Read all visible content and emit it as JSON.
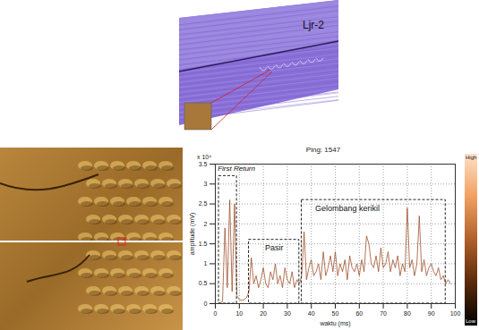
{
  "figure": {
    "sonar_label": "Ljr-2"
  },
  "chart_data": {
    "type": "line",
    "title": "Ping: 1547",
    "x_label": "waktu (ms)",
    "y_label": "amplitude (mV)",
    "y_multiplier": "x 10⁴",
    "xlim": [
      0,
      100
    ],
    "xticks": [
      0,
      10,
      20,
      30,
      40,
      50,
      60,
      70,
      80,
      90,
      100
    ],
    "ylim": [
      0,
      3.5
    ],
    "yticks": [
      0,
      0.5,
      1,
      1.5,
      2,
      2.5,
      3,
      3.5
    ],
    "grid": true,
    "x": [
      0,
      1,
      2,
      3,
      4,
      5,
      6,
      7,
      8,
      9,
      10,
      11,
      12,
      13,
      14,
      15,
      16,
      17,
      18,
      19,
      20,
      21,
      22,
      23,
      24,
      25,
      26,
      27,
      28,
      29,
      30,
      31,
      32,
      33,
      34,
      35,
      36,
      37,
      38,
      39,
      40,
      41,
      42,
      43,
      44,
      45,
      46,
      47,
      48,
      49,
      50,
      51,
      52,
      53,
      54,
      55,
      56,
      57,
      58,
      59,
      60,
      61,
      62,
      63,
      64,
      65,
      66,
      67,
      68,
      69,
      70,
      71,
      72,
      73,
      74,
      75,
      76,
      77,
      78,
      79,
      80,
      81,
      82,
      83,
      84,
      85,
      86,
      87,
      88,
      89,
      90,
      91,
      92,
      93,
      94,
      95,
      96,
      97,
      98
    ],
    "series": [
      {
        "name": "amplitude",
        "color": "#a0522d",
        "values": [
          0,
          0,
          0.02,
          0.05,
          1.9,
          0.4,
          2.6,
          0.3,
          2.5,
          0.2,
          0.1,
          0.08,
          0.1,
          0.15,
          0.3,
          1.15,
          0.5,
          0.7,
          0.4,
          0.6,
          0.9,
          0.5,
          0.4,
          0.8,
          0.6,
          1.0,
          0.5,
          0.7,
          0.4,
          0.9,
          0.6,
          0.5,
          0.8,
          0.4,
          0.6,
          0.5,
          0.7,
          1.8,
          0.6,
          0.9,
          1.1,
          0.7,
          0.8,
          1.0,
          0.6,
          1.3,
          0.7,
          0.9,
          1.2,
          0.8,
          1.3,
          0.7,
          1.0,
          0.8,
          1.1,
          0.6,
          1.2,
          0.9,
          0.8,
          1.0,
          0.7,
          1.1,
          0.8,
          1.7,
          1.5,
          1.0,
          0.9,
          1.2,
          0.8,
          1.4,
          0.9,
          1.0,
          1.3,
          0.8,
          1.1,
          0.9,
          1.2,
          0.7,
          1.0,
          0.8,
          2.4,
          0.9,
          1.1,
          0.7,
          1.0,
          2.2,
          0.8,
          1.1,
          0.7,
          0.9,
          1.0,
          0.8,
          0.7,
          0.9,
          0.6,
          0.7,
          0.5,
          0.6,
          0.5
        ]
      }
    ],
    "annotations": [
      {
        "text": "First Return",
        "x": 1,
        "y": 3.38
      }
    ],
    "boxes": [
      {
        "x0": 1.5,
        "x1": 9,
        "y0": 0,
        "y1": 3.2
      },
      {
        "label": "Pasir",
        "x0": 14,
        "x1": 35,
        "y0": 0,
        "y1": 1.6,
        "label_x": 24.5,
        "label_y": 1.4
      },
      {
        "label": "Gelombang kerikil",
        "x0": 36,
        "x1": 96,
        "y0": 0,
        "y1": 2.6,
        "label_x": 55,
        "label_y": 2.38
      }
    ],
    "colorbar": {
      "high_label": "High",
      "low_label": "Low"
    }
  }
}
